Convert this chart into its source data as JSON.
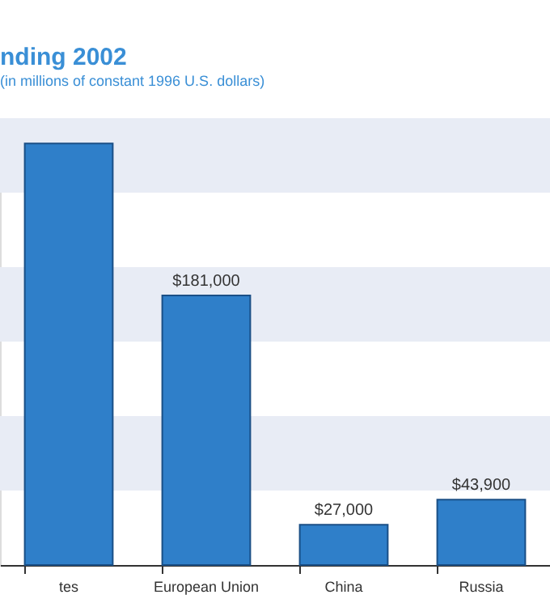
{
  "chart_data": {
    "type": "bar",
    "title": "nding 2002",
    "subtitle": "(in millions of constant 1996 U.S. dollars)",
    "categories": [
      "tes",
      "European Union",
      "China",
      "Russia"
    ],
    "values": [
      283000,
      181000,
      27000,
      43900
    ],
    "value_labels": [
      null,
      "$181,000",
      "$27,000",
      "$43,900"
    ],
    "color": "#2f7fc9",
    "ylim": [
      0,
      300000
    ],
    "bands": [
      {
        "axis": "y",
        "from": 50000,
        "to": 100000,
        "color": "#e8ecf5"
      },
      {
        "axis": "y",
        "from": 150000,
        "to": 200000,
        "color": "#e8ecf5"
      },
      {
        "axis": "y",
        "from": 250000,
        "to": 300000,
        "color": "#e8ecf5"
      }
    ],
    "tick_labels": "x"
  }
}
